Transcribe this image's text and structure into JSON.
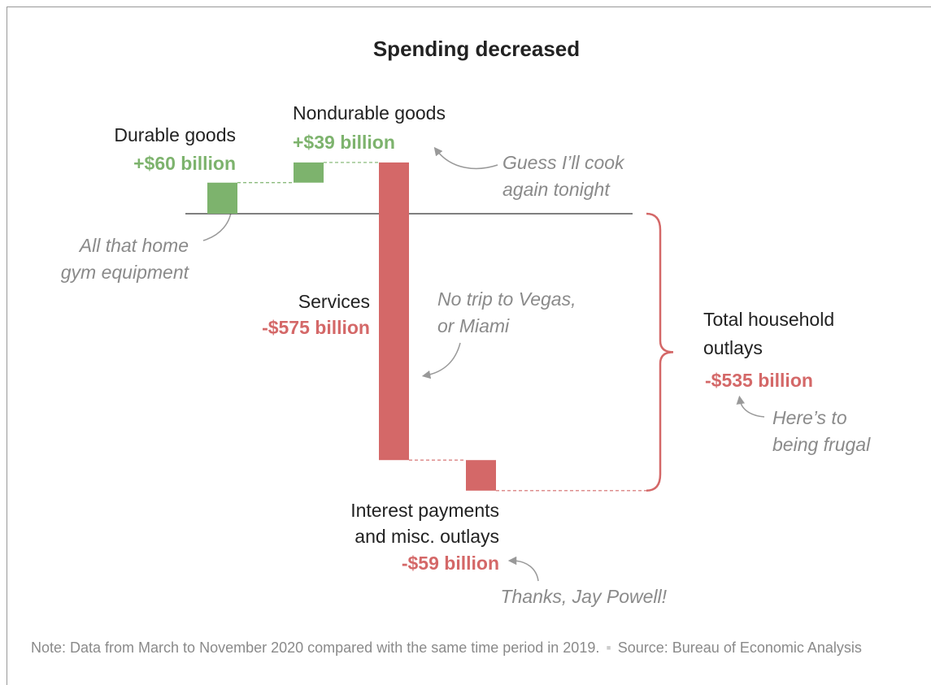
{
  "chart_data": {
    "type": "waterfall",
    "title": "Spending decreased",
    "categories": [
      [
        "Durable goods"
      ],
      [
        "Nondurable goods"
      ],
      [
        "Services"
      ],
      [
        "Interest payments",
        "and misc. outlays"
      ]
    ],
    "values": [
      60,
      39,
      -575,
      -59
    ],
    "value_labels": [
      "+$60 billion",
      "+$39 billion",
      "-$575 billion",
      "-$59 billion"
    ],
    "total": {
      "label": [
        "Total household",
        "outlays"
      ],
      "value": -535,
      "value_label": "-$535 billion"
    },
    "colors": {
      "increase": "#7db36d",
      "decrease": "#d46868"
    },
    "annotations": [
      [
        "All that home",
        "gym equipment"
      ],
      [
        "Guess I’ll cook",
        "again tonight"
      ],
      [
        "No trip to Vegas,",
        "or Miami"
      ],
      [
        "Here’s to",
        "being frugal"
      ],
      [
        "Thanks, Jay Powell!"
      ]
    ],
    "note": "Note: Data from March to November 2020 compared with the same time period in 2019.",
    "source": "Source: Bureau of Economic Analysis"
  }
}
